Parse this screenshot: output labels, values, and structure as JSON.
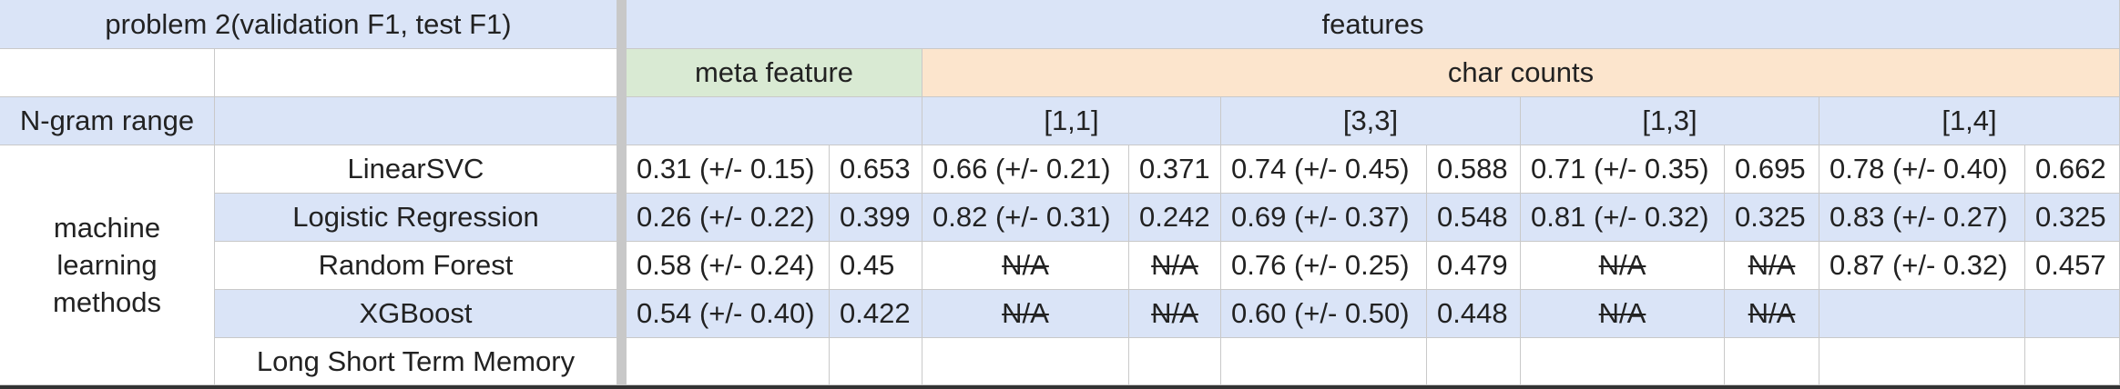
{
  "header": {
    "problem_label": "problem 2(validation F1, test F1)",
    "features_label": "features",
    "meta_feature_label": "meta feature",
    "char_counts_label": "char counts",
    "ngram_label": "N-gram range",
    "ranges": [
      "[1,1]",
      "[3,3]",
      "[1,3]",
      "[1,4]"
    ]
  },
  "group_label": "machine learning methods",
  "rows": [
    {
      "method": "LinearSVC",
      "cells": [
        "0.31 (+/- 0.15)",
        "0.653",
        "0.66 (+/- 0.21)",
        "0.371",
        "0.74 (+/- 0.45)",
        "0.588",
        "0.71 (+/- 0.35)",
        "0.695",
        "0.78 (+/- 0.40)",
        "0.662"
      ]
    },
    {
      "method": "Logistic Regression",
      "cells": [
        "0.26 (+/- 0.22)",
        "0.399",
        "0.82 (+/- 0.31)",
        "0.242",
        "0.69 (+/- 0.37)",
        "0.548",
        "0.81 (+/- 0.32)",
        "0.325",
        "0.83 (+/- 0.27)",
        "0.325"
      ]
    },
    {
      "method": "Random Forest",
      "cells": [
        "0.58 (+/- 0.24)",
        "0.45",
        "N/A",
        "N/A",
        "0.76 (+/- 0.25)",
        "0.479",
        "N/A",
        "N/A",
        "0.87 (+/- 0.32)",
        "0.457"
      ]
    },
    {
      "method": "XGBoost",
      "cells": [
        "0.54 (+/- 0.40)",
        "0.422",
        "N/A",
        "N/A",
        "0.60 (+/- 0.50)",
        "0.448",
        "N/A",
        "N/A",
        "",
        ""
      ]
    },
    {
      "method": "Long Short Term Memory",
      "cells": [
        "",
        "",
        "",
        "",
        "",
        "",
        "",
        "",
        "",
        ""
      ]
    }
  ],
  "colors": {
    "header_blue": "#dae4f7",
    "meta_green": "#d9ead3",
    "char_orange": "#fce5cd"
  }
}
